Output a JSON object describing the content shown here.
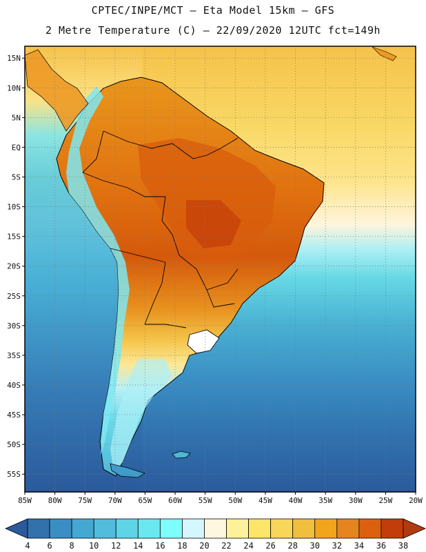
{
  "header": {
    "line1": "CPTEC/INPE/MCT –  Eta Model 15km – GFS",
    "line2": "2 Metre Temperature (C) – 22/09/2020 12UTC fct=149h"
  },
  "map": {
    "lat_labels": [
      "15N",
      "10N",
      "5N",
      "EQ",
      "5S",
      "10S",
      "15S",
      "20S",
      "25S",
      "30S",
      "35S",
      "40S",
      "45S",
      "50S",
      "55S"
    ],
    "lon_labels": [
      "85W",
      "80W",
      "75W",
      "70W",
      "65W",
      "60W",
      "55W",
      "50W",
      "45W",
      "40W",
      "35W",
      "30W",
      "25W",
      "20W"
    ],
    "lat_range": [
      17,
      -58
    ],
    "lon_range": [
      -85,
      -20
    ]
  },
  "colorbar": {
    "labels": [
      "4",
      "6",
      "8",
      "10",
      "12",
      "14",
      "16",
      "18",
      "20",
      "22",
      "24",
      "26",
      "28",
      "30",
      "32",
      "34",
      "36",
      "38"
    ],
    "colors": [
      "#2b5a9c",
      "#3371ad",
      "#3a8ec4",
      "#45a8d2",
      "#52bcdc",
      "#5fd4e6",
      "#6ae8ef",
      "#7efdfd",
      "#d4f6fd",
      "#fef7e0",
      "#fdf29a",
      "#fde56a",
      "#f8d659",
      "#f0bf3e",
      "#f2a51a",
      "#e5851f",
      "#dd6010",
      "#c33d0a",
      "#b23a10"
    ]
  }
}
